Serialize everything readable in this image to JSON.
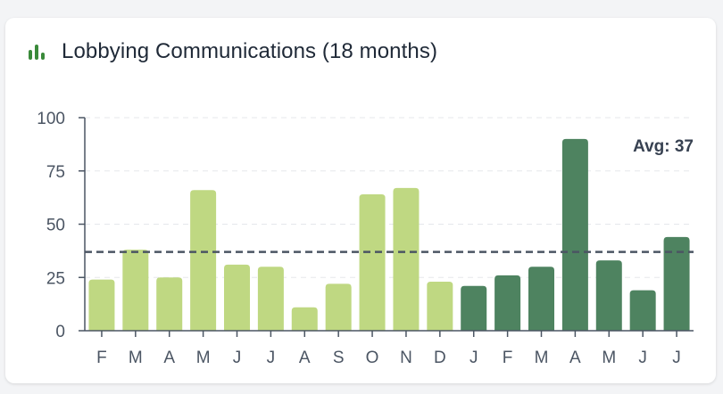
{
  "card": {
    "title": "Lobbying Communications (18 months)",
    "icon": "bar-chart-icon",
    "icon_color": "#3a8a3a"
  },
  "chart_data": {
    "type": "bar",
    "title": "Lobbying Communications (18 months)",
    "categories": [
      "F",
      "M",
      "A",
      "M",
      "J",
      "J",
      "A",
      "S",
      "O",
      "N",
      "D",
      "J",
      "F",
      "M",
      "A",
      "M",
      "J",
      "J"
    ],
    "values": [
      24,
      38,
      25,
      66,
      31,
      30,
      11,
      22,
      64,
      67,
      23,
      21,
      26,
      30,
      90,
      33,
      19,
      44
    ],
    "ylim": [
      0,
      100
    ],
    "yticks": [
      0,
      25,
      50,
      75,
      100
    ],
    "grid": true,
    "average": 37,
    "average_label": "Avg: 37",
    "colors": {
      "earlier_months": "#bfd882",
      "recent_months": "#4e8360",
      "average_line": "#4b5563",
      "grid": "#e5e7eb",
      "axis": "#4b5563"
    },
    "recent_start_index": 11
  }
}
